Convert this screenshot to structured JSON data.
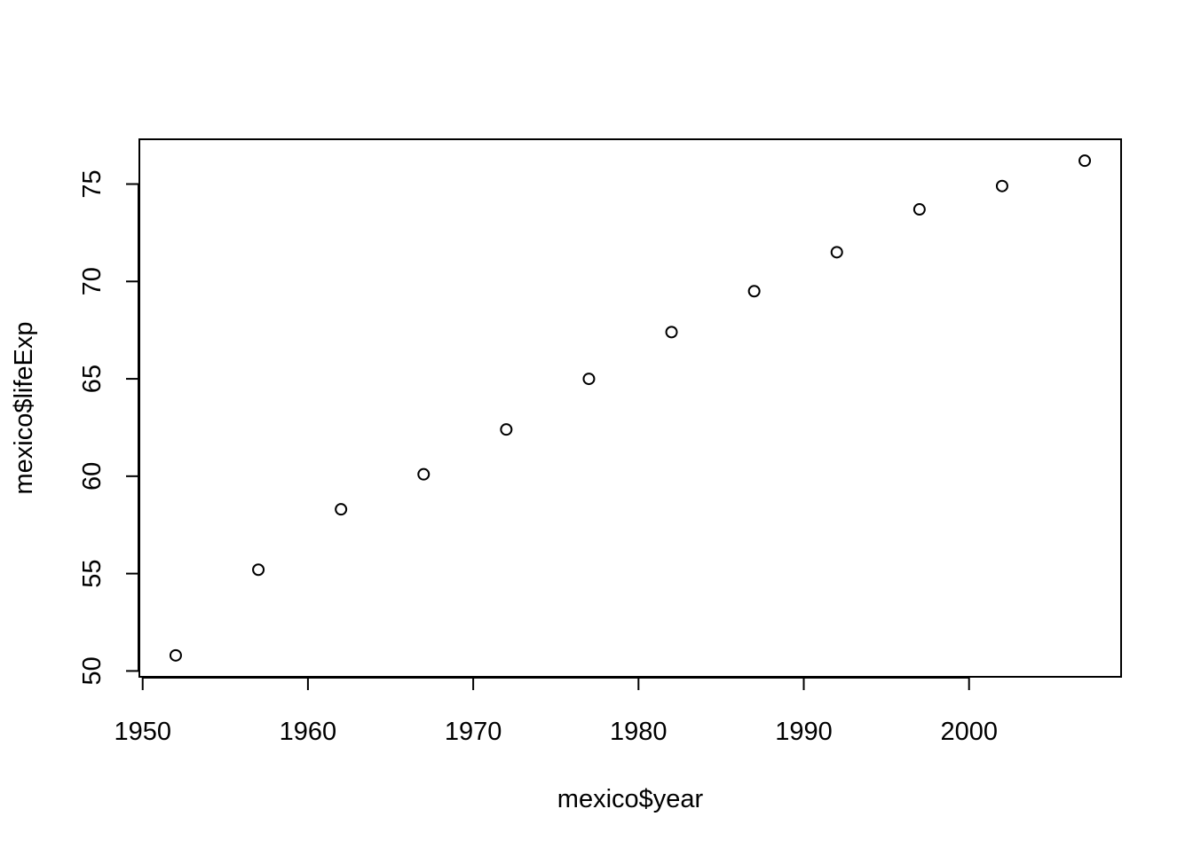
{
  "chart_data": {
    "type": "scatter",
    "title": "",
    "xlabel": "mexico$year",
    "ylabel": "mexico$lifeExp",
    "xlim": [
      1949.8,
      2009.2
    ],
    "ylim": [
      49.7,
      77.3
    ],
    "x_ticks": [
      1950,
      1960,
      1970,
      1980,
      1990,
      2000
    ],
    "y_ticks": [
      50,
      55,
      60,
      65,
      70,
      75
    ],
    "grid": false,
    "marker": "open-circle",
    "points": [
      {
        "x": 1952,
        "y": 50.8
      },
      {
        "x": 1957,
        "y": 55.2
      },
      {
        "x": 1962,
        "y": 58.3
      },
      {
        "x": 1967,
        "y": 60.1
      },
      {
        "x": 1972,
        "y": 62.4
      },
      {
        "x": 1977,
        "y": 65.0
      },
      {
        "x": 1982,
        "y": 67.4
      },
      {
        "x": 1987,
        "y": 69.5
      },
      {
        "x": 1992,
        "y": 71.5
      },
      {
        "x": 1997,
        "y": 73.7
      },
      {
        "x": 2002,
        "y": 74.9
      },
      {
        "x": 2007,
        "y": 76.2
      }
    ]
  },
  "colors": {
    "axis": "#000000",
    "point_stroke": "#000000",
    "background": "#ffffff"
  }
}
